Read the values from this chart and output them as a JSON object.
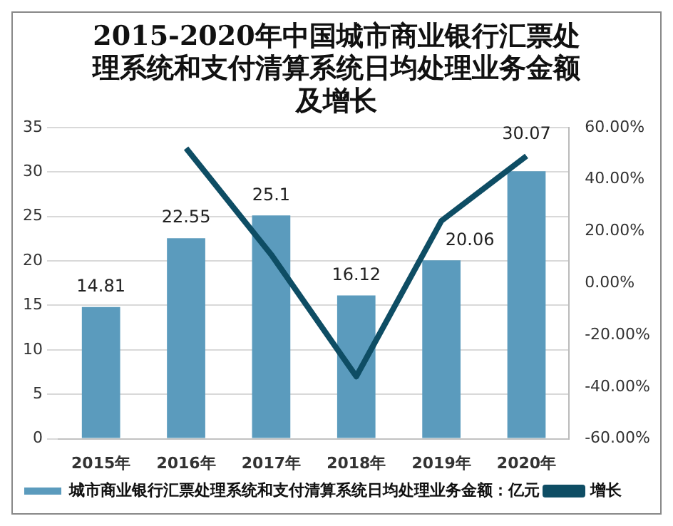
{
  "chart_data": {
    "type": "bar",
    "title": "2015-2020年中国城市商业银行汇票处理系统和支付清算系统日均处理业务金额及增长",
    "categories": [
      "2015年",
      "2016年",
      "2017年",
      "2018年",
      "2019年",
      "2020年"
    ],
    "series": [
      {
        "name": "城市商业银行汇票处理系统和支付清算系统日均处理业务金额：亿元",
        "color": "#5b9bbd",
        "values": [
          14.81,
          22.55,
          25.1,
          16.12,
          20.06,
          30.07
        ],
        "value_labels": [
          "14.81",
          "22.55",
          "25.1",
          "16.12",
          "20.06",
          "30.07"
        ]
      },
      {
        "name": "增长",
        "type": "line",
        "axis": "y2",
        "color": "#0e4d64",
        "values": [
          null,
          52,
          11,
          -36,
          24,
          49
        ]
      }
    ],
    "ylim": [
      0,
      35
    ],
    "yticks": [
      0,
      5,
      10,
      15,
      20,
      25,
      30,
      35
    ],
    "y2lim": [
      -60,
      60
    ],
    "y2ticks": [
      {
        "value": -60,
        "label": "-60.00%"
      },
      {
        "value": -40,
        "label": "-40.00%"
      },
      {
        "value": -20,
        "label": "-20.00%"
      },
      {
        "value": 0,
        "label": "0.00%"
      },
      {
        "value": 20,
        "label": "20.00%"
      },
      {
        "value": 40,
        "label": "40.00%"
      },
      {
        "value": 60,
        "label": "60.00%"
      }
    ],
    "grid": "y",
    "legend": "bottom",
    "marker": "none",
    "line_style": "solid"
  }
}
